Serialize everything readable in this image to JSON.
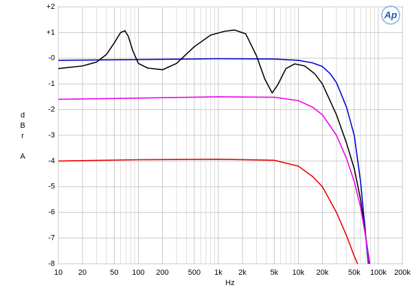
{
  "chart_data": {
    "type": "line",
    "logo": "Ap",
    "xlabel": "Hz",
    "ylabel": "dBr A",
    "xscale": "log",
    "grid": true,
    "xlim": [
      10,
      200000
    ],
    "ylim": [
      -8,
      2
    ],
    "xticks": [
      10,
      20,
      50,
      100,
      200,
      500,
      {
        "value": 1000,
        "label": "1k"
      },
      {
        "value": 2000,
        "label": "2k"
      },
      {
        "value": 5000,
        "label": "5k"
      },
      {
        "value": 10000,
        "label": "10k"
      },
      {
        "value": 20000,
        "label": "20k"
      },
      {
        "value": 50000,
        "label": "50k"
      },
      {
        "value": 100000,
        "label": "100k"
      },
      {
        "value": 200000,
        "label": "200k"
      }
    ],
    "xminor": [
      30,
      40,
      60,
      70,
      80,
      90,
      300,
      400,
      600,
      700,
      800,
      900,
      3000,
      4000,
      6000,
      7000,
      8000,
      9000,
      30000,
      40000,
      60000,
      70000,
      80000,
      90000
    ],
    "yticks": [
      {
        "value": 2,
        "label": "+2"
      },
      {
        "value": 1,
        "label": "+1"
      },
      {
        "value": 0,
        "label": "-0"
      },
      -1,
      -2,
      -3,
      -4,
      -5,
      -6,
      -7,
      -8
    ],
    "series": [
      {
        "color": "#0000cc",
        "x": [
          10,
          100,
          1000,
          5000,
          10000,
          15000,
          20000,
          25000,
          30000,
          40000,
          50000,
          60000,
          70000,
          75000
        ],
        "values": [
          -0.08,
          -0.05,
          -0.02,
          -0.03,
          -0.08,
          -0.18,
          -0.32,
          -0.6,
          -0.95,
          -1.9,
          -3.0,
          -4.8,
          -7.0,
          -8
        ]
      },
      {
        "color": "#000000",
        "x": [
          10,
          20,
          30,
          40,
          50,
          60,
          68,
          75,
          85,
          100,
          130,
          200,
          300,
          500,
          800,
          1200,
          1600,
          2200,
          3000,
          3800,
          4700,
          5500,
          7000,
          9000,
          12000,
          16000,
          20000,
          30000,
          40000,
          50000,
          60000,
          70000,
          78000
        ],
        "values": [
          -0.4,
          -0.3,
          -0.15,
          0.15,
          0.6,
          1.0,
          1.07,
          0.85,
          0.3,
          -0.2,
          -0.38,
          -0.45,
          -0.2,
          0.45,
          0.9,
          1.05,
          1.1,
          0.95,
          0.1,
          -0.8,
          -1.35,
          -1.05,
          -0.4,
          -0.22,
          -0.3,
          -0.6,
          -1.0,
          -2.2,
          -3.3,
          -4.3,
          -5.5,
          -7.0,
          -8
        ]
      },
      {
        "color": "#ee00ee",
        "x": [
          10,
          100,
          1000,
          5000,
          10000,
          15000,
          20000,
          30000,
          40000,
          50000,
          60000,
          70000,
          77000
        ],
        "values": [
          -1.6,
          -1.55,
          -1.5,
          -1.52,
          -1.65,
          -1.9,
          -2.2,
          -3.0,
          -3.9,
          -4.8,
          -5.8,
          -7.0,
          -8
        ]
      },
      {
        "color": "#ee0000",
        "x": [
          10,
          100,
          1000,
          5000,
          10000,
          15000,
          20000,
          30000,
          40000,
          50000,
          55000
        ],
        "values": [
          -4.0,
          -3.95,
          -3.93,
          -3.97,
          -4.2,
          -4.6,
          -5.0,
          -6.0,
          -6.9,
          -7.7,
          -8
        ]
      }
    ]
  }
}
